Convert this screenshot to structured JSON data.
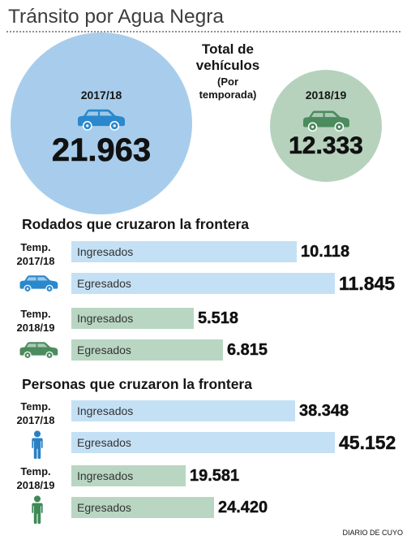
{
  "header": {
    "title": "Tránsito por Agua Negra"
  },
  "totals": {
    "title": "Total de vehículos",
    "subtitle": "(Por temporada)",
    "icon": "car-icon",
    "seasons": [
      {
        "season": "2017/18",
        "value": 21963,
        "label": "21.963",
        "circle_color": "#a8cdec",
        "icon_color": "#2a88cc"
      },
      {
        "season": "2018/19",
        "value": 12333,
        "label": "12.333",
        "circle_color": "#b6d2bd",
        "icon_color": "#4b8b5e"
      }
    ]
  },
  "chart_data": [
    {
      "type": "bar",
      "orientation": "horizontal",
      "title": "Rodados que cruzaron la frontera",
      "icon": "car-icon",
      "categories": [
        "Temp. 2017/18",
        "Temp. 2018/19"
      ],
      "category_colors": [
        "#c4e0f5",
        "#b9d6c2"
      ],
      "icon_colors": [
        "#2a88cc",
        "#4b8b5e"
      ],
      "series": [
        {
          "name": "Ingresados",
          "values": [
            10118,
            5518
          ],
          "labels": [
            "10.118",
            "5.518"
          ]
        },
        {
          "name": "Egresados",
          "values": [
            11845,
            6815
          ],
          "labels": [
            "11.845",
            "6.815"
          ]
        }
      ]
    },
    {
      "type": "bar",
      "orientation": "horizontal",
      "title": "Personas que cruzaron la frontera",
      "icon": "person-icon",
      "categories": [
        "Temp. 2017/18",
        "Temp. 2018/19"
      ],
      "category_colors": [
        "#c4e0f5",
        "#b9d6c2"
      ],
      "icon_colors": [
        "#2a80c4",
        "#3e8a56"
      ],
      "series": [
        {
          "name": "Ingresados",
          "values": [
            38348,
            19581
          ],
          "labels": [
            "38.348",
            "19.581"
          ]
        },
        {
          "name": "Egresados",
          "values": [
            45152,
            24420
          ],
          "labels": [
            "45.152",
            "24.420"
          ]
        }
      ]
    }
  ],
  "footer": {
    "credit": "DIARIO DE CUYO"
  }
}
